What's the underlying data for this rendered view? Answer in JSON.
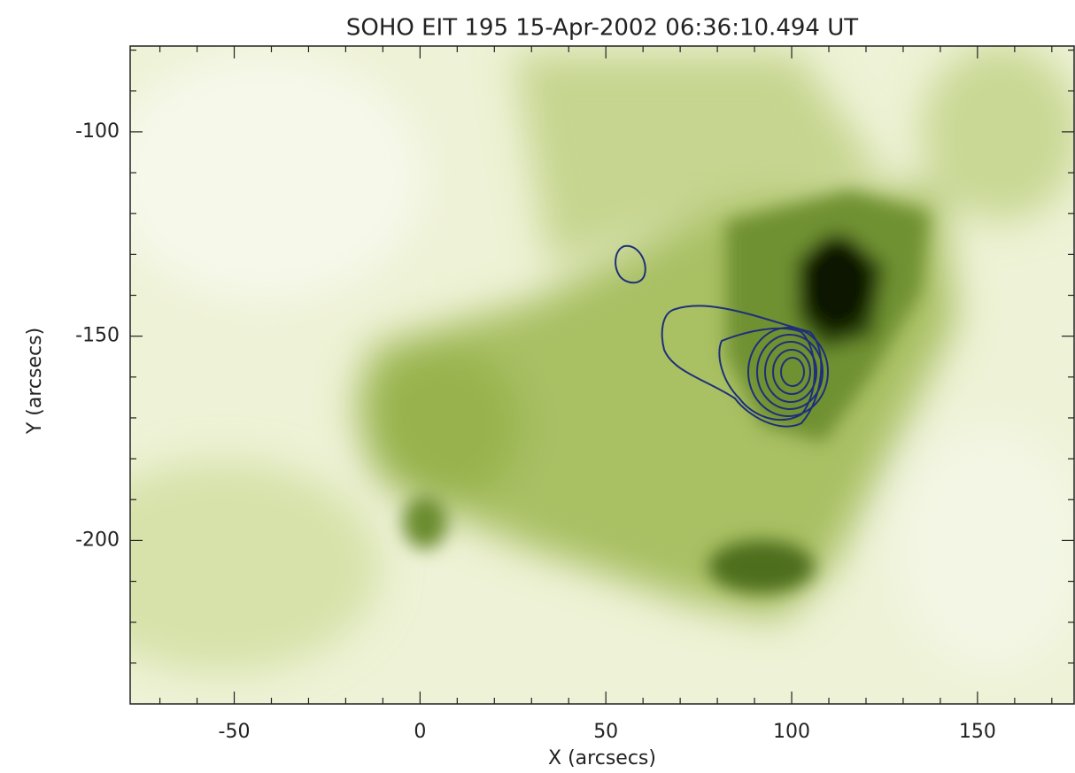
{
  "chart_data": {
    "type": "image",
    "title": "SOHO EIT 195 15-Apr-2002 06:36:10.494 UT",
    "x_label": "X (arcsecs)",
    "y_label": "Y (arcsecs)",
    "xlim": [
      -78,
      176
    ],
    "ylim": [
      -240,
      -79
    ],
    "xticks": [
      -50,
      0,
      50,
      100,
      150
    ],
    "yticks": [
      -100,
      -150,
      -200
    ],
    "xminorticks": [
      -70,
      -60,
      -40,
      -30,
      -20,
      -10,
      10,
      20,
      30,
      40,
      60,
      70,
      80,
      90,
      110,
      120,
      130,
      140,
      160,
      170
    ],
    "yminorticks": [
      -230,
      -220,
      -210,
      -190,
      -180,
      -170,
      -160,
      -140,
      -130,
      -120,
      -110,
      -90,
      -80
    ]
  }
}
